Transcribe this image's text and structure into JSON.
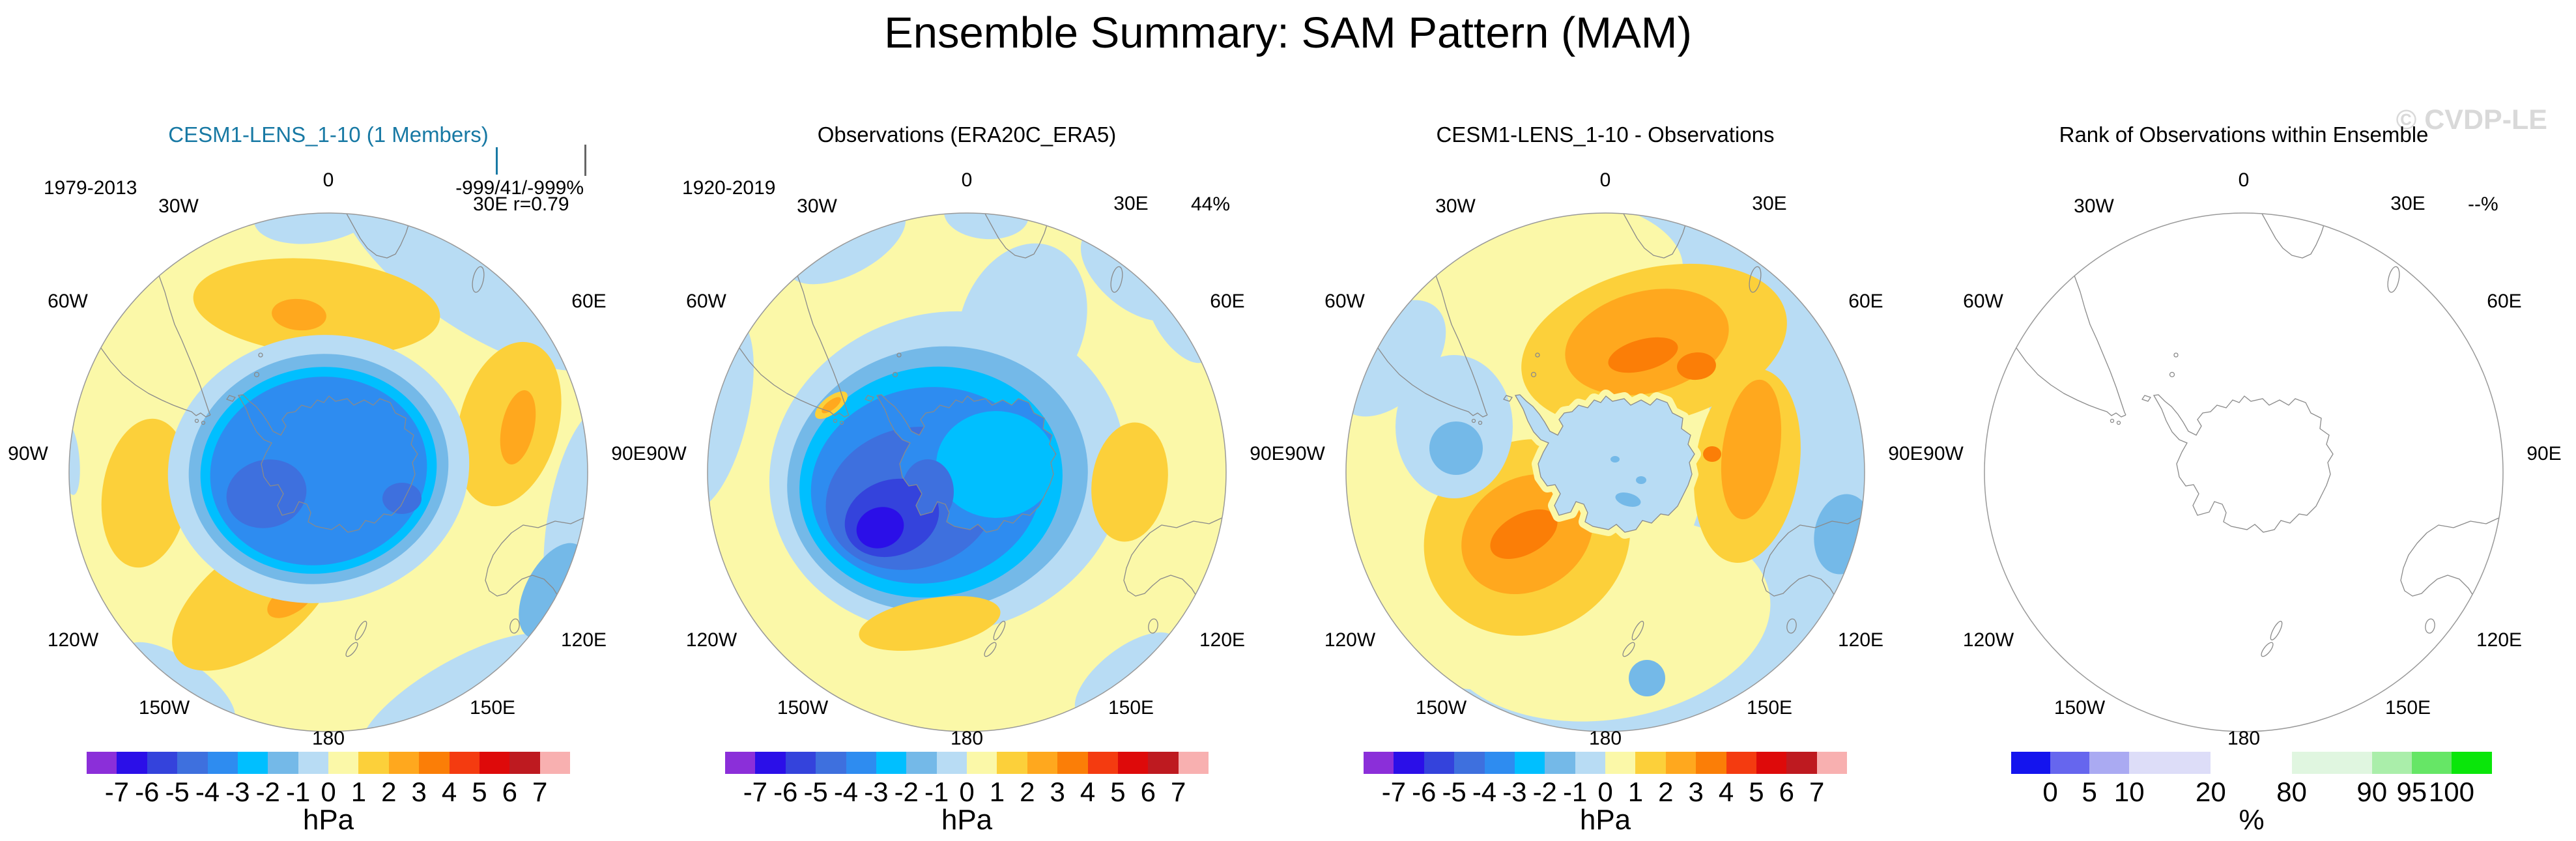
{
  "title": "Ensemble Summary: SAM Pattern (MAM)",
  "watermark": "© CVDP-LE",
  "panels": [
    {
      "id": "model",
      "title": "CESM1-LENS_1-10 (1 Members)",
      "title_color": "#1879A4",
      "period": "1979-2013",
      "stat_line1": "-999/41/-999%",
      "stat_line2": "30E r=0.79",
      "stat_pct": "",
      "colorbar": "hpa",
      "has_member_ticks": true
    },
    {
      "id": "observations",
      "title": "Observations (ERA20C_ERA5)",
      "title_color": "#000000",
      "period": "1920-2019",
      "stat_line1": "",
      "stat_line2": "",
      "stat_pct": "44%",
      "colorbar": "hpa",
      "has_member_ticks": false
    },
    {
      "id": "difference",
      "title": "CESM1-LENS_1-10 - Observations",
      "title_color": "#000000",
      "period": "",
      "stat_line1": "",
      "stat_line2": "",
      "stat_pct": "",
      "colorbar": "hpa",
      "has_member_ticks": false
    },
    {
      "id": "rank",
      "title": "Rank of Observations within Ensemble",
      "title_color": "#000000",
      "period": "",
      "stat_line1": "",
      "stat_line2": "",
      "stat_pct": "--%",
      "colorbar": "pct",
      "has_member_ticks": false
    }
  ],
  "lon_labels": [
    "0",
    "30W",
    "30E",
    "60W",
    "60E",
    "90W",
    "90E",
    "120W",
    "120E",
    "150W",
    "150E",
    "180"
  ],
  "colorbars": {
    "hpa": {
      "unit": "hPa",
      "tick_labels": [
        "-7",
        "-6",
        "-5",
        "-4",
        "-3",
        "-2",
        "-1",
        "0",
        "1",
        "2",
        "3",
        "4",
        "5",
        "6",
        "7"
      ],
      "segment_colors": [
        "#8B2FD9",
        "#2B0FE8",
        "#3443DC",
        "#3E70DE",
        "#2E8CF0",
        "#00BFFF",
        "#74B9E8",
        "#B8DCF4",
        "#FBF8A8",
        "#FCD03A",
        "#FFA81E",
        "#FB7E07",
        "#F43B10",
        "#DE0A0A",
        "#BE1A20",
        "#F8B0B0"
      ],
      "segment_widths_pct": [
        6.25,
        6.25,
        6.25,
        6.25,
        6.25,
        6.25,
        6.25,
        6.25,
        6.25,
        6.25,
        6.25,
        6.25,
        6.25,
        6.25,
        6.25,
        6.25
      ]
    },
    "pct": {
      "unit": "%",
      "tick_labels": [
        "0",
        "5",
        "10",
        "20",
        "80",
        "90",
        "95",
        "100"
      ],
      "segment_colors": [
        "#1414EE",
        "#6666EE",
        "#AAAAF2",
        "#DDDDF8",
        "#FFFFFF",
        "#E0F6E0",
        "#AAEEAA",
        "#66E666",
        "#0AE60A"
      ],
      "segment_widths_pct": [
        8.14,
        8.14,
        8.28,
        16.96,
        16.82,
        16.69,
        8.28,
        8.28,
        8.41
      ]
    }
  },
  "chart_data": [
    {
      "type": "heatmap",
      "subtype": "south-polar filled contour map",
      "panel": "CESM1-LENS_1-10 (1 Members)",
      "variable": "SAM pattern sea level pressure regression, MAM season",
      "units": "hPa",
      "period": "1979-2013",
      "annotations": [
        "-999/41/-999%",
        "r=0.79"
      ],
      "contour_levels": [
        -7,
        -6,
        -5,
        -4,
        -3,
        -2,
        -1,
        0,
        1,
        2,
        3,
        4,
        5,
        6,
        7
      ],
      "pattern_features": [
        {
          "feature": "central low over Antarctica",
          "approx_value_hPa": -5,
          "location": "pole, minimum lobes west of pole"
        },
        {
          "feature": "positive band ~50-60S with maxima",
          "approx_value_hPa": 3,
          "locations": [
            "0-30W",
            "~90E",
            "~160W"
          ]
        },
        {
          "feature": "weak negative rim",
          "approx_value_hPa": -1,
          "locations": [
            "0-120E outer edge",
            "bottom edge"
          ]
        }
      ],
      "legend_position": "below",
      "grid": false
    },
    {
      "type": "heatmap",
      "subtype": "south-polar filled contour map",
      "panel": "Observations (ERA20C_ERA5)",
      "variable": "SAM pattern sea level pressure regression, MAM season",
      "units": "hPa",
      "period": "1920-2019",
      "annotations": [
        "44%"
      ],
      "contour_levels": [
        -7,
        -6,
        -5,
        -4,
        -3,
        -2,
        -1,
        0,
        1,
        2,
        3,
        4,
        5,
        6,
        7
      ],
      "pattern_features": [
        {
          "feature": "deep central low",
          "approx_value_hPa": -6,
          "location": "Amundsen Sea / West Antarctica"
        },
        {
          "feature": "East Antarctic plateau weaker low",
          "approx_value_hPa": -3
        },
        {
          "feature": "positive maxima",
          "approx_value_hPa": 2,
          "locations": [
            "~90E midlatitudes",
            "~165W midlatitudes"
          ]
        },
        {
          "feature": "broad weak positive ring",
          "approx_value_hPa": 1,
          "location": "midlatitudes"
        }
      ],
      "legend_position": "below",
      "grid": false
    },
    {
      "type": "heatmap",
      "subtype": "south-polar filled contour map",
      "panel": "CESM1-LENS_1-10 - Observations",
      "variable": "model minus observations SAM pattern difference",
      "units": "hPa",
      "period": "",
      "annotations": [],
      "contour_levels": [
        -7,
        -6,
        -5,
        -4,
        -3,
        -2,
        -1,
        0,
        1,
        2,
        3,
        4,
        5,
        6,
        7
      ],
      "pattern_features": [
        {
          "feature": "positive difference center",
          "approx_value_hPa": 4,
          "location": "~60S, 0-40E"
        },
        {
          "feature": "positive difference center",
          "approx_value_hPa": 4,
          "location": "~65S, 150W-180"
        },
        {
          "feature": "negative pocket",
          "approx_value_hPa": -2,
          "location": "Antarctic Peninsula / Bellingshausen Sea"
        },
        {
          "feature": "weak negative rim",
          "approx_value_hPa": -1,
          "location": "eastern and southern outer edge"
        },
        {
          "feature": "near-zero over Antarctic interior",
          "approx_value_hPa": -1
        }
      ],
      "legend_position": "below",
      "grid": false
    },
    {
      "type": "heatmap",
      "subtype": "south-polar outline map",
      "panel": "Rank of Observations within Ensemble",
      "variable": "rank of observations within ensemble",
      "units": "%",
      "period": "",
      "annotations": [
        "--%"
      ],
      "scale_ticks": [
        0,
        5,
        10,
        20,
        80,
        90,
        95,
        100
      ],
      "pattern_features": [
        {
          "feature": "no data shown (blank map, coastlines only)"
        }
      ],
      "legend_position": "below",
      "grid": false
    }
  ]
}
